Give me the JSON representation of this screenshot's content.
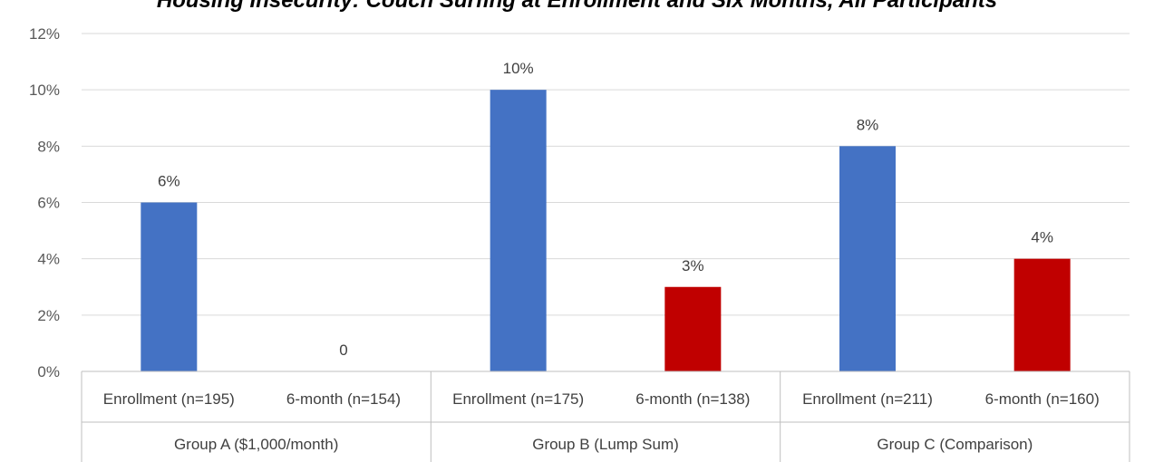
{
  "chart_data": {
    "type": "bar",
    "title": "Housing Insecurity: Couch Surfing at Enrollment and Six Months, All Participants",
    "xlabel": "",
    "ylabel": "",
    "ylim": [
      0,
      12
    ],
    "y_ticks": [
      "0%",
      "2%",
      "4%",
      "6%",
      "8%",
      "10%",
      "12%"
    ],
    "grid": true,
    "groups": [
      {
        "name": "Group A ($1,000/month)",
        "bars": [
          {
            "label": "Enrollment (n=195)",
            "value": 6,
            "data_label": "6%",
            "color": "#4472C4"
          },
          {
            "label": "6-month (n=154)",
            "value": 0,
            "data_label": "0",
            "color": "#C00000"
          }
        ]
      },
      {
        "name": "Group B (Lump Sum)",
        "bars": [
          {
            "label": "Enrollment (n=175)",
            "value": 10,
            "data_label": "10%",
            "color": "#4472C4"
          },
          {
            "label": "6-month (n=138)",
            "value": 3,
            "data_label": "3%",
            "color": "#C00000"
          }
        ]
      },
      {
        "name": "Group C (Comparison)",
        "bars": [
          {
            "label": "Enrollment (n=211)",
            "value": 8,
            "data_label": "8%",
            "color": "#4472C4"
          },
          {
            "label": "6-month (n=160)",
            "value": 4,
            "data_label": "4%",
            "color": "#C00000"
          }
        ]
      }
    ]
  }
}
